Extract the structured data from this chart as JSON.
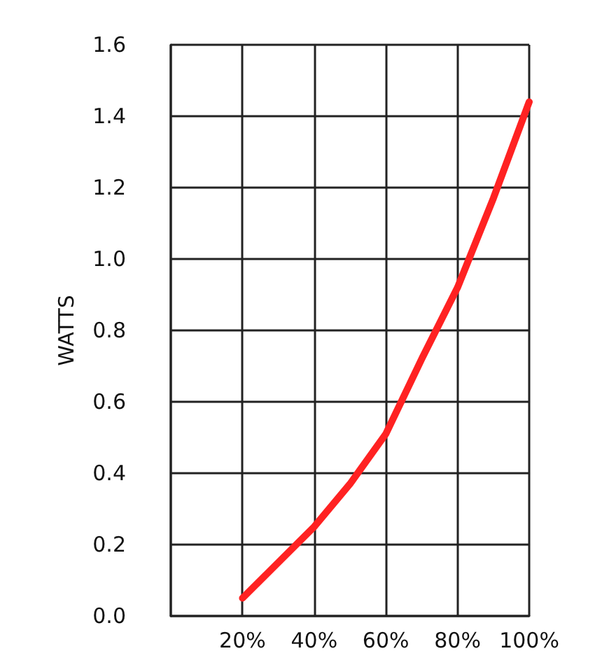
{
  "chart_data": {
    "type": "line",
    "ylabel": "WATTS",
    "x": [
      20,
      30,
      40,
      50,
      60,
      70,
      80,
      90,
      100
    ],
    "series": [
      {
        "color": "#ff2222",
        "values": [
          0.05,
          0.15,
          0.25,
          0.37,
          0.51,
          0.72,
          0.92,
          1.17,
          1.44
        ]
      }
    ],
    "xlim": [
      0,
      100
    ],
    "xticks": [
      {
        "value": 0,
        "label": null
      },
      {
        "value": 20,
        "label": "20%"
      },
      {
        "value": 40,
        "label": "40%"
      },
      {
        "value": 60,
        "label": "60%"
      },
      {
        "value": 80,
        "label": "80%"
      },
      {
        "value": 100,
        "label": "100%"
      }
    ],
    "ylim": [
      0,
      1.6
    ],
    "yticks": [
      {
        "value": 0,
        "label": "0.0"
      },
      {
        "value": 0.2,
        "label": "0.2"
      },
      {
        "value": 0.4,
        "label": "0.4"
      },
      {
        "value": 0.6,
        "label": "0.6"
      },
      {
        "value": 0.8,
        "label": "0.8"
      },
      {
        "value": 1,
        "label": "1.0"
      },
      {
        "value": 1.2,
        "label": "1.2"
      },
      {
        "value": 1.4,
        "label": "1.4"
      },
      {
        "value": 1.6,
        "label": "1.6"
      }
    ],
    "grid": true,
    "marker": "none",
    "line_style": "solid"
  }
}
